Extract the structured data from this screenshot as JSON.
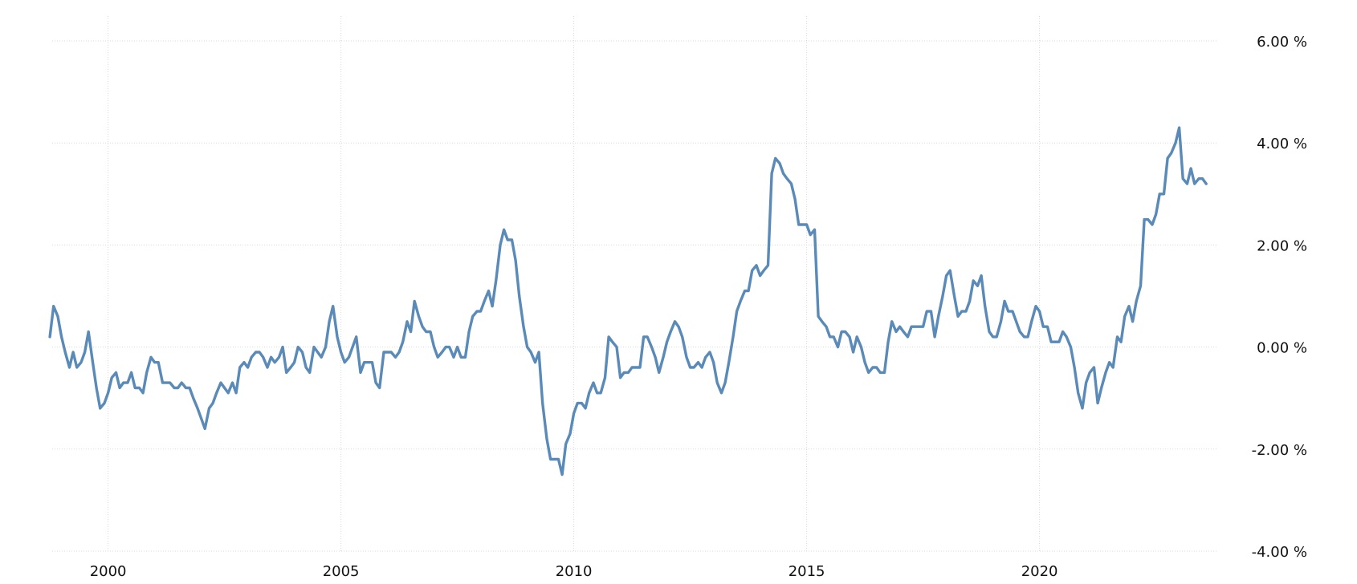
{
  "chart_data": {
    "type": "line",
    "title": "",
    "xlabel": "",
    "ylabel": "",
    "ylim": [
      -4,
      6
    ],
    "xlim": [
      1998.8,
      2023.8
    ],
    "y_ticks": [
      6,
      4,
      2,
      0,
      -2,
      -4
    ],
    "y_tick_labels": [
      "6.00 %",
      "4.00 %",
      "2.00 %",
      "0.00 %",
      "-2.00 %",
      "-4.00 %"
    ],
    "x_ticks": [
      2000,
      2005,
      2010,
      2015,
      2020
    ],
    "x_tick_labels": [
      "2000",
      "2005",
      "2010",
      "2015",
      "2020"
    ],
    "grid": true,
    "legend": "none",
    "colors": {
      "line": "#5a8ab8",
      "grid": "#d9d9d9",
      "text": "#111111"
    },
    "series": [
      {
        "x": [
          1998.75,
          1998.83,
          1998.92,
          1999.0,
          1999.08,
          1999.17,
          1999.25,
          1999.33,
          1999.42,
          1999.5,
          1999.58,
          1999.67,
          1999.75,
          1999.83,
          1999.92,
          2000.0,
          2000.08,
          2000.17,
          2000.25,
          2000.33,
          2000.42,
          2000.5,
          2000.58,
          2000.67,
          2000.75,
          2000.83,
          2000.92,
          2001.0,
          2001.08,
          2001.17,
          2001.25,
          2001.33,
          2001.42,
          2001.5,
          2001.58,
          2001.67,
          2001.75,
          2001.83,
          2001.92,
          2002.0,
          2002.08,
          2002.17,
          2002.25,
          2002.33,
          2002.42,
          2002.5,
          2002.58,
          2002.67,
          2002.75,
          2002.83,
          2002.92,
          2003.0,
          2003.08,
          2003.17,
          2003.25,
          2003.33,
          2003.42,
          2003.5,
          2003.58,
          2003.67,
          2003.75,
          2003.83,
          2003.92,
          2004.0,
          2004.08,
          2004.17,
          2004.25,
          2004.33,
          2004.42,
          2004.5,
          2004.58,
          2004.67,
          2004.75,
          2004.83,
          2004.92,
          2005.0,
          2005.08,
          2005.17,
          2005.25,
          2005.33,
          2005.42,
          2005.5,
          2005.58,
          2005.67,
          2005.75,
          2005.83,
          2005.92,
          2006.0,
          2006.08,
          2006.17,
          2006.25,
          2006.33,
          2006.42,
          2006.5,
          2006.58,
          2006.67,
          2006.75,
          2006.83,
          2006.92,
          2007.0,
          2007.08,
          2007.17,
          2007.25,
          2007.33,
          2007.42,
          2007.5,
          2007.58,
          2007.67,
          2007.75,
          2007.83,
          2007.92,
          2008.0,
          2008.08,
          2008.17,
          2008.25,
          2008.33,
          2008.42,
          2008.5,
          2008.58,
          2008.67,
          2008.75,
          2008.83,
          2008.92,
          2009.0,
          2009.08,
          2009.17,
          2009.25,
          2009.33,
          2009.42,
          2009.5,
          2009.58,
          2009.67,
          2009.75,
          2009.83,
          2009.92,
          2010.0,
          2010.08,
          2010.17,
          2010.25,
          2010.33,
          2010.42,
          2010.5,
          2010.58,
          2010.67,
          2010.75,
          2010.83,
          2010.92,
          2011.0,
          2011.08,
          2011.17,
          2011.25,
          2011.33,
          2011.42,
          2011.5,
          2011.58,
          2011.67,
          2011.75,
          2011.83,
          2011.92,
          2012.0,
          2012.08,
          2012.17,
          2012.25,
          2012.33,
          2012.42,
          2012.5,
          2012.58,
          2012.67,
          2012.75,
          2012.83,
          2012.92,
          2013.0,
          2013.08,
          2013.17,
          2013.25,
          2013.33,
          2013.42,
          2013.5,
          2013.58,
          2013.67,
          2013.75,
          2013.83,
          2013.92,
          2014.0,
          2014.08,
          2014.17,
          2014.25,
          2014.33,
          2014.42,
          2014.5,
          2014.58,
          2014.67,
          2014.75,
          2014.83,
          2014.92,
          2015.0,
          2015.08,
          2015.17,
          2015.25,
          2015.33,
          2015.42,
          2015.5,
          2015.58,
          2015.67,
          2015.75,
          2015.83,
          2015.92,
          2016.0,
          2016.08,
          2016.17,
          2016.25,
          2016.33,
          2016.42,
          2016.5,
          2016.58,
          2016.67,
          2016.75,
          2016.83,
          2016.92,
          2017.0,
          2017.08,
          2017.17,
          2017.25,
          2017.33,
          2017.42,
          2017.5,
          2017.58,
          2017.67,
          2017.75,
          2017.83,
          2017.92,
          2018.0,
          2018.08,
          2018.17,
          2018.25,
          2018.33,
          2018.42,
          2018.5,
          2018.58,
          2018.67,
          2018.75,
          2018.83,
          2018.92,
          2019.0,
          2019.08,
          2019.17,
          2019.25,
          2019.33,
          2019.42,
          2019.5,
          2019.58,
          2019.67,
          2019.75,
          2019.83,
          2019.92,
          2020.0,
          2020.08,
          2020.17,
          2020.25,
          2020.33,
          2020.42,
          2020.5,
          2020.58,
          2020.67,
          2020.75,
          2020.83,
          2020.92,
          2021.0,
          2021.08,
          2021.17,
          2021.25,
          2021.33,
          2021.42,
          2021.5,
          2021.58,
          2021.67,
          2021.75,
          2021.83,
          2021.92,
          2022.0,
          2022.08,
          2022.17,
          2022.25,
          2022.33,
          2022.42,
          2022.5,
          2022.58,
          2022.67,
          2022.75,
          2022.83,
          2022.92,
          2023.0,
          2023.08,
          2023.17,
          2023.25,
          2023.33,
          2023.42,
          2023.5,
          2023.58
        ],
        "values": [
          0.2,
          0.8,
          0.6,
          0.2,
          -0.1,
          -0.4,
          -0.1,
          -0.4,
          -0.3,
          -0.1,
          0.3,
          -0.3,
          -0.8,
          -1.2,
          -1.1,
          -0.9,
          -0.6,
          -0.5,
          -0.8,
          -0.7,
          -0.7,
          -0.5,
          -0.8,
          -0.8,
          -0.9,
          -0.5,
          -0.2,
          -0.3,
          -0.3,
          -0.7,
          -0.7,
          -0.7,
          -0.8,
          -0.8,
          -0.7,
          -0.8,
          -0.8,
          -1.0,
          -1.2,
          -1.4,
          -1.6,
          -1.2,
          -1.1,
          -0.9,
          -0.7,
          -0.8,
          -0.9,
          -0.7,
          -0.9,
          -0.4,
          -0.3,
          -0.4,
          -0.2,
          -0.1,
          -0.1,
          -0.2,
          -0.4,
          -0.2,
          -0.3,
          -0.2,
          0.0,
          -0.5,
          -0.4,
          -0.3,
          0.0,
          -0.1,
          -0.4,
          -0.5,
          0.0,
          -0.1,
          -0.2,
          0.0,
          0.5,
          0.8,
          0.2,
          -0.1,
          -0.3,
          -0.2,
          0.0,
          0.2,
          -0.5,
          -0.3,
          -0.3,
          -0.3,
          -0.7,
          -0.8,
          -0.1,
          -0.1,
          -0.1,
          -0.2,
          -0.1,
          0.1,
          0.5,
          0.3,
          0.9,
          0.6,
          0.4,
          0.3,
          0.3,
          0.0,
          -0.2,
          -0.1,
          0.0,
          0.0,
          -0.2,
          0.0,
          -0.2,
          -0.2,
          0.3,
          0.6,
          0.7,
          0.7,
          0.9,
          1.1,
          0.8,
          1.3,
          2.0,
          2.3,
          2.1,
          2.1,
          1.7,
          1.0,
          0.4,
          0.0,
          -0.1,
          -0.3,
          -0.1,
          -1.1,
          -1.8,
          -2.2,
          -2.2,
          -2.2,
          -2.5,
          -1.9,
          -1.7,
          -1.3,
          -1.1,
          -1.1,
          -1.2,
          -0.9,
          -0.7,
          -0.9,
          -0.9,
          -0.6,
          0.2,
          0.1,
          0.0,
          -0.6,
          -0.5,
          -0.5,
          -0.4,
          -0.4,
          -0.4,
          0.2,
          0.2,
          0.0,
          -0.2,
          -0.5,
          -0.2,
          0.1,
          0.3,
          0.5,
          0.4,
          0.2,
          -0.2,
          -0.4,
          -0.4,
          -0.3,
          -0.4,
          -0.2,
          -0.1,
          -0.3,
          -0.7,
          -0.9,
          -0.7,
          -0.3,
          0.2,
          0.7,
          0.9,
          1.1,
          1.1,
          1.5,
          1.6,
          1.4,
          1.5,
          1.6,
          3.4,
          3.7,
          3.6,
          3.4,
          3.3,
          3.2,
          2.9,
          2.4,
          2.4,
          2.4,
          2.2,
          2.3,
          0.6,
          0.5,
          0.4,
          0.2,
          0.2,
          0.0,
          0.3,
          0.3,
          0.2,
          -0.1,
          0.2,
          0.0,
          -0.3,
          -0.5,
          -0.4,
          -0.4,
          -0.5,
          -0.5,
          0.1,
          0.5,
          0.3,
          0.4,
          0.3,
          0.2,
          0.4,
          0.4,
          0.4,
          0.4,
          0.7,
          0.7,
          0.2,
          0.6,
          1.0,
          1.4,
          1.5,
          1.0,
          0.6,
          0.7,
          0.7,
          0.9,
          1.3,
          1.2,
          1.4,
          0.8,
          0.3,
          0.2,
          0.2,
          0.5,
          0.9,
          0.7,
          0.7,
          0.5,
          0.3,
          0.2,
          0.2,
          0.5,
          0.8,
          0.7,
          0.4,
          0.4,
          0.1,
          0.1,
          0.1,
          0.3,
          0.2,
          0.0,
          -0.4,
          -0.9,
          -1.2,
          -0.7,
          -0.5,
          -0.4,
          -1.1,
          -0.8,
          -0.5,
          -0.3,
          -0.4,
          0.2,
          0.1,
          0.6,
          0.8,
          0.5,
          0.9,
          1.2,
          2.5,
          2.5,
          2.4,
          2.6,
          3.0,
          3.0,
          3.7,
          3.8,
          4.0,
          4.3,
          3.3,
          3.2,
          3.5,
          3.2,
          3.3,
          3.3,
          3.2
        ]
      }
    ]
  }
}
